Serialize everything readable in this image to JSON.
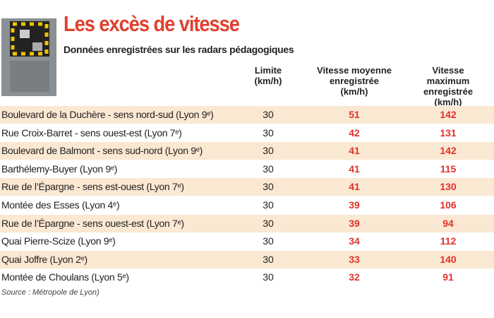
{
  "header": {
    "title": "Les excès de vitesse",
    "subtitle": "Données enregistrées sur les radars pédagogiques"
  },
  "table": {
    "columns": [
      "Limite\n(km/h)",
      "Vitesse moyenne\nenregistrée\n(km/h)",
      "Vitesse maximum\nenregistrée\n(km/h)"
    ],
    "rows": [
      [
        "Boulevard de la Duchère - sens nord-sud (Lyon 9ᵉ)",
        "30",
        "51",
        "142"
      ],
      [
        "Rue Croix-Barret - sens ouest-est (Lyon 7ᵉ)",
        "30",
        "42",
        "131"
      ],
      [
        "Boulevard de Balmont - sens sud-nord (Lyon 9ᵉ)",
        "30",
        "41",
        "142"
      ],
      [
        "Barthélemy-Buyer (Lyon 9ᵉ)",
        "30",
        "41",
        "115"
      ],
      [
        "Rue de l’Épargne - sens est-ouest (Lyon 7ᵉ)",
        "30",
        "41",
        "130"
      ],
      [
        "Montée des Esses (Lyon 4ᵉ)",
        "30",
        "39",
        "106"
      ],
      [
        "Rue de l’Épargne - sens ouest-est (Lyon 7ᵉ)",
        "30",
        "39",
        "94"
      ],
      [
        "Quai Pierre-Scize (Lyon 9ᵉ)",
        "30",
        "34",
        "112"
      ],
      [
        "Quai Joffre (Lyon 2ᵉ)",
        "30",
        "33",
        "140"
      ],
      [
        "Montée de Choulans (Lyon 5ᵉ)",
        "30",
        "32",
        "91"
      ]
    ]
  },
  "footer": {
    "source": "Source : Métropole de Lyon)"
  }
}
